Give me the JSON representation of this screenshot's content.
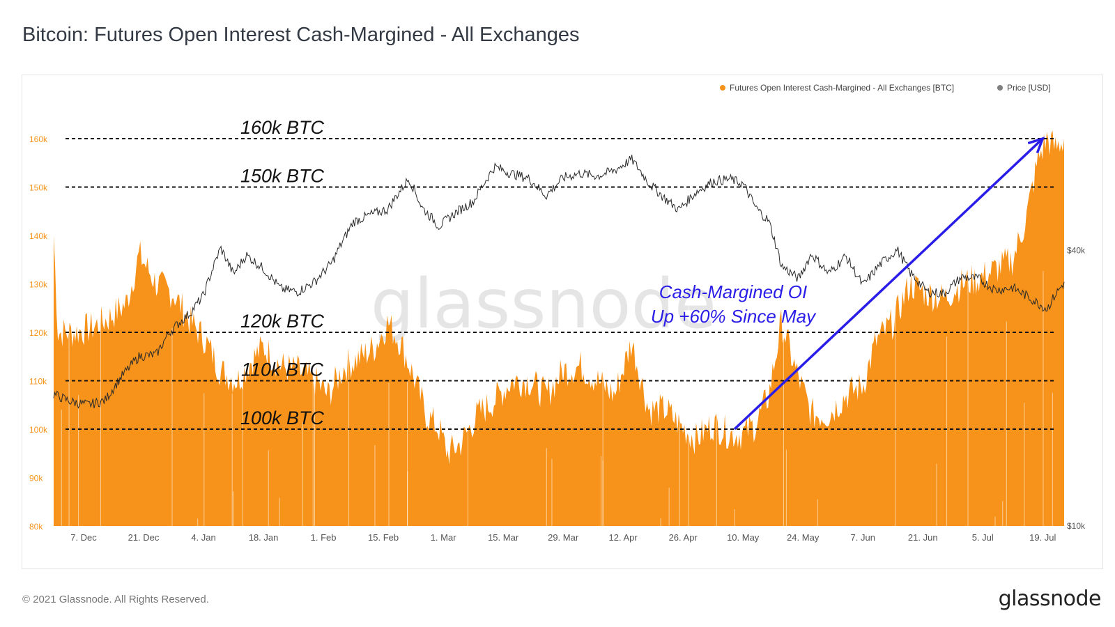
{
  "title": "Bitcoin: Futures Open Interest Cash-Margined - All Exchanges",
  "footer": {
    "copyright": "© 2021 Glassnode. All Rights Reserved.",
    "logo": "glassnode"
  },
  "watermark": "glassnode",
  "colors": {
    "oi": "#f7931a",
    "price": "#2a2a2a",
    "arrow": "#2b1de8",
    "annotation": "#2b1de8",
    "ref_line": "#111111"
  },
  "chart_data": {
    "type": "area",
    "legend": [
      {
        "name": "Futures Open Interest Cash-Margined - All Exchanges [BTC]",
        "color": "#f7931a"
      },
      {
        "name": "Price [USD]",
        "color": "#808080"
      }
    ],
    "x_ticks": [
      "7. Dec",
      "21. Dec",
      "4. Jan",
      "18. Jan",
      "1. Feb",
      "15. Feb",
      "1. Mar",
      "15. Mar",
      "29. Mar",
      "12. Apr",
      "26. Apr",
      "10. May",
      "24. May",
      "7. Jun",
      "21. Jun",
      "5. Jul",
      "19. Jul"
    ],
    "x_range": [
      "2020-11-30",
      "2021-07-24"
    ],
    "y_left": {
      "ticks": [
        "80k",
        "90k",
        "100k",
        "110k",
        "120k",
        "130k",
        "140k",
        "150k",
        "160k"
      ],
      "range": [
        80000,
        161000
      ]
    },
    "y_right": {
      "ticks": [
        "$10k",
        "$40k"
      ],
      "scale": "log",
      "range": [
        10000,
        72000
      ]
    },
    "reference_lines": [
      {
        "label": "160k BTC",
        "value": 160000
      },
      {
        "label": "150k BTC",
        "value": 150000
      },
      {
        "label": "120k BTC",
        "value": 120000
      },
      {
        "label": "110k BTC",
        "value": 110000
      },
      {
        "label": "100k BTC",
        "value": 100000
      }
    ],
    "annotation": {
      "lines": [
        "Cash-Margined OI",
        "Up +60% Since May"
      ]
    },
    "arrow": {
      "from": {
        "date": "2021-05-08",
        "value": 100000
      },
      "to": {
        "date": "2021-07-19",
        "value": 160000
      }
    },
    "series": [
      {
        "name": "Futures Open Interest Cash-Margined - All Exchanges [BTC]",
        "points": [
          [
            "2020-11-30",
            140000
          ],
          [
            "2020-12-01",
            120000
          ],
          [
            "2020-12-05",
            120000
          ],
          [
            "2020-12-09",
            121000
          ],
          [
            "2020-12-13",
            123000
          ],
          [
            "2020-12-17",
            126000
          ],
          [
            "2020-12-20",
            136000
          ],
          [
            "2020-12-24",
            130000
          ],
          [
            "2020-12-28",
            128000
          ],
          [
            "2021-01-01",
            122000
          ],
          [
            "2021-01-04",
            119000
          ],
          [
            "2021-01-08",
            112000
          ],
          [
            "2021-01-12",
            110000
          ],
          [
            "2021-01-15",
            114000
          ],
          [
            "2021-01-18",
            117000
          ],
          [
            "2021-01-22",
            113000
          ],
          [
            "2021-01-26",
            112000
          ],
          [
            "2021-01-30",
            110000
          ],
          [
            "2021-02-02",
            107000
          ],
          [
            "2021-02-06",
            113000
          ],
          [
            "2021-02-10",
            115000
          ],
          [
            "2021-02-13",
            117000
          ],
          [
            "2021-02-16",
            122000
          ],
          [
            "2021-02-19",
            118000
          ],
          [
            "2021-02-22",
            111000
          ],
          [
            "2021-02-25",
            103000
          ],
          [
            "2021-02-28",
            100000
          ],
          [
            "2021-03-02",
            95000
          ],
          [
            "2021-03-05",
            97000
          ],
          [
            "2021-03-09",
            103000
          ],
          [
            "2021-03-13",
            106000
          ],
          [
            "2021-03-17",
            110000
          ],
          [
            "2021-03-21",
            110000
          ],
          [
            "2021-03-25",
            107000
          ],
          [
            "2021-03-29",
            112000
          ],
          [
            "2021-04-02",
            113000
          ],
          [
            "2021-04-06",
            110000
          ],
          [
            "2021-04-10",
            107000
          ],
          [
            "2021-04-14",
            118000
          ],
          [
            "2021-04-18",
            104000
          ],
          [
            "2021-04-22",
            104000
          ],
          [
            "2021-04-25",
            101000
          ],
          [
            "2021-04-29",
            98000
          ],
          [
            "2021-05-03",
            101000
          ],
          [
            "2021-05-07",
            99000
          ],
          [
            "2021-05-10",
            99000
          ],
          [
            "2021-05-13",
            101000
          ],
          [
            "2021-05-16",
            107000
          ],
          [
            "2021-05-19",
            122000
          ],
          [
            "2021-05-22",
            113000
          ],
          [
            "2021-05-26",
            103000
          ],
          [
            "2021-05-30",
            103000
          ],
          [
            "2021-06-03",
            107000
          ],
          [
            "2021-06-07",
            109000
          ],
          [
            "2021-06-10",
            118000
          ],
          [
            "2021-06-14",
            122000
          ],
          [
            "2021-06-18",
            130000
          ],
          [
            "2021-06-22",
            128000
          ],
          [
            "2021-06-26",
            127000
          ],
          [
            "2021-06-30",
            130000
          ],
          [
            "2021-07-04",
            131000
          ],
          [
            "2021-07-08",
            133000
          ],
          [
            "2021-07-12",
            135000
          ],
          [
            "2021-07-15",
            143000
          ],
          [
            "2021-07-18",
            156000
          ],
          [
            "2021-07-20",
            160000
          ],
          [
            "2021-07-22",
            158000
          ],
          [
            "2021-07-24",
            160000
          ]
        ]
      },
      {
        "name": "Price [USD]",
        "points": [
          [
            "2020-11-30",
            19400
          ],
          [
            "2020-12-04",
            18700
          ],
          [
            "2020-12-08",
            18400
          ],
          [
            "2020-12-12",
            18800
          ],
          [
            "2020-12-16",
            21300
          ],
          [
            "2020-12-20",
            23500
          ],
          [
            "2020-12-24",
            23700
          ],
          [
            "2020-12-27",
            26500
          ],
          [
            "2021-01-01",
            29300
          ],
          [
            "2021-01-04",
            31900
          ],
          [
            "2021-01-08",
            40500
          ],
          [
            "2021-01-11",
            35500
          ],
          [
            "2021-01-14",
            39100
          ],
          [
            "2021-01-18",
            36500
          ],
          [
            "2021-01-22",
            33000
          ],
          [
            "2021-01-26",
            32500
          ],
          [
            "2021-01-30",
            34200
          ],
          [
            "2021-02-03",
            37600
          ],
          [
            "2021-02-08",
            46200
          ],
          [
            "2021-02-12",
            47900
          ],
          [
            "2021-02-16",
            49200
          ],
          [
            "2021-02-21",
            57500
          ],
          [
            "2021-02-24",
            49700
          ],
          [
            "2021-02-28",
            45200
          ],
          [
            "2021-03-04",
            48500
          ],
          [
            "2021-03-08",
            51200
          ],
          [
            "2021-03-13",
            61000
          ],
          [
            "2021-03-17",
            58900
          ],
          [
            "2021-03-21",
            57500
          ],
          [
            "2021-03-25",
            52700
          ],
          [
            "2021-03-29",
            57700
          ],
          [
            "2021-04-02",
            59000
          ],
          [
            "2021-04-06",
            58200
          ],
          [
            "2021-04-10",
            59900
          ],
          [
            "2021-04-14",
            63300
          ],
          [
            "2021-04-18",
            56200
          ],
          [
            "2021-04-22",
            51700
          ],
          [
            "2021-04-25",
            49100
          ],
          [
            "2021-04-29",
            53600
          ],
          [
            "2021-05-03",
            56700
          ],
          [
            "2021-05-07",
            57300
          ],
          [
            "2021-05-10",
            55900
          ],
          [
            "2021-05-13",
            49600
          ],
          [
            "2021-05-16",
            46400
          ],
          [
            "2021-05-19",
            37000
          ],
          [
            "2021-05-23",
            34700
          ],
          [
            "2021-05-26",
            39300
          ],
          [
            "2021-05-30",
            35600
          ],
          [
            "2021-06-03",
            38900
          ],
          [
            "2021-06-07",
            33500
          ],
          [
            "2021-06-11",
            37300
          ],
          [
            "2021-06-15",
            40200
          ],
          [
            "2021-06-18",
            35800
          ],
          [
            "2021-06-22",
            32500
          ],
          [
            "2021-06-26",
            32200
          ],
          [
            "2021-06-30",
            35000
          ],
          [
            "2021-07-04",
            34700
          ],
          [
            "2021-07-08",
            32800
          ],
          [
            "2021-07-12",
            33200
          ],
          [
            "2021-07-16",
            31500
          ],
          [
            "2021-07-20",
            29800
          ],
          [
            "2021-07-22",
            32100
          ],
          [
            "2021-07-24",
            34000
          ]
        ]
      }
    ]
  }
}
